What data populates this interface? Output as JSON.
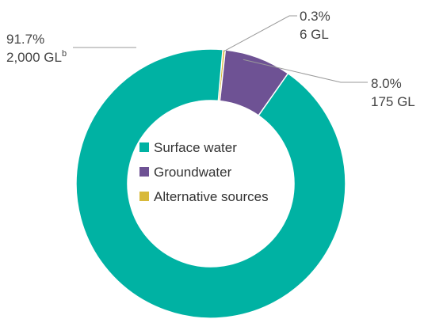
{
  "chart_data": {
    "type": "pie",
    "variant": "donut",
    "slices": [
      {
        "name": "Surface water",
        "percent": 91.7,
        "percent_label": "91.7%",
        "volume_label": "2,000 GL",
        "volume_footnote": "b",
        "color": "#00B2A3"
      },
      {
        "name": "Groundwater",
        "percent": 8.0,
        "percent_label": "8.0%",
        "volume_label": "175 GL",
        "volume_footnote": "",
        "color": "#6E5294"
      },
      {
        "name": "Alternative sources",
        "percent": 0.3,
        "percent_label": "0.3%",
        "volume_label": "6 GL",
        "volume_footnote": "",
        "color": "#D8B93A"
      }
    ],
    "legend_placement": "center",
    "title": ""
  },
  "colors": {
    "leader_line": "#9a9a9a",
    "separator": "#ffffff"
  }
}
